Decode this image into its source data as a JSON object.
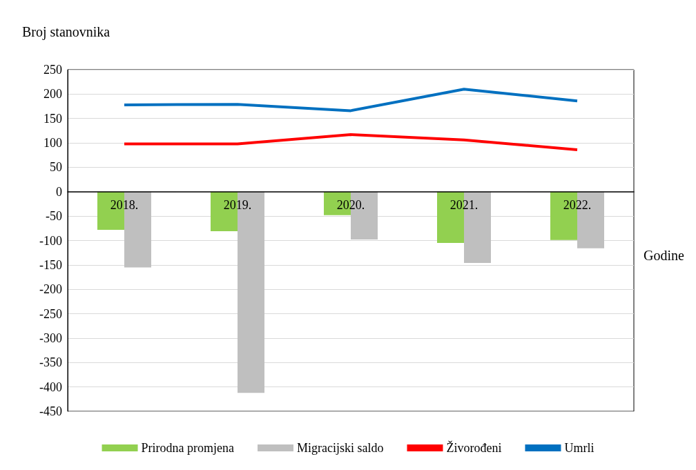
{
  "chart_data": {
    "type": "bar",
    "ylabel": "Broj stanovnika",
    "xlabel": "Godine",
    "categories": [
      "2018.",
      "2019.",
      "2020.",
      "2021.",
      "2022."
    ],
    "series": [
      {
        "name": "Prirodna promjena",
        "color": "#92d050",
        "values": [
          -78,
          -81,
          -48,
          -105,
          -99
        ]
      },
      {
        "name": "Migracijski saldo",
        "color": "#bfbfbf",
        "values": [
          -155,
          -412,
          -98,
          -146,
          -116
        ]
      },
      {
        "name": "Živorođeni",
        "type": "line",
        "color": "#ff0000",
        "values": [
          98,
          98,
          117,
          106,
          86
        ]
      },
      {
        "name": "Umrli",
        "type": "line",
        "color": "#0070c0",
        "values": [
          178,
          179,
          166,
          210,
          186
        ]
      }
    ],
    "ylim": [
      -450,
      250
    ],
    "yticks": [
      -450,
      -400,
      -350,
      -300,
      -250,
      -200,
      -150,
      -100,
      -50,
      0,
      50,
      100,
      150,
      200,
      250
    ],
    "grid": "y",
    "legend": "bottom",
    "marker": "none"
  }
}
